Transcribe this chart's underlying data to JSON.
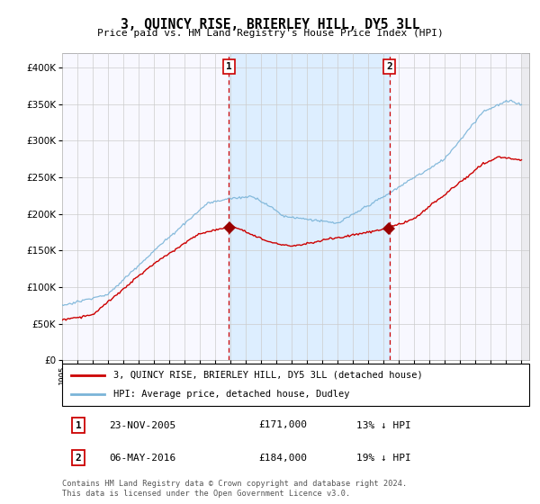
{
  "title": "3, QUINCY RISE, BRIERLEY HILL, DY5 3LL",
  "subtitle": "Price paid vs. HM Land Registry's House Price Index (HPI)",
  "legend_line1": "3, QUINCY RISE, BRIERLEY HILL, DY5 3LL (detached house)",
  "legend_line2": "HPI: Average price, detached house, Dudley",
  "footer": "Contains HM Land Registry data © Crown copyright and database right 2024.\nThis data is licensed under the Open Government Licence v3.0.",
  "annotation1_date": "23-NOV-2005",
  "annotation1_price": "£171,000",
  "annotation1_hpi": "13% ↓ HPI",
  "annotation2_date": "06-MAY-2016",
  "annotation2_price": "£184,000",
  "annotation2_hpi": "19% ↓ HPI",
  "hpi_color": "#7ab4d8",
  "price_color": "#cc0000",
  "marker_color": "#990000",
  "annotation_color": "#cc0000",
  "bg_color": "#f8f8ff",
  "highlight_color": "#ddeeff",
  "grid_color": "#cccccc",
  "ylim_max": 420000,
  "ytick_vals": [
    0,
    50000,
    100000,
    150000,
    200000,
    250000,
    300000,
    350000,
    400000
  ],
  "sale1_year": 2005.9,
  "sale1_price": 171000,
  "sale2_year": 2016.37,
  "sale2_price": 184000
}
